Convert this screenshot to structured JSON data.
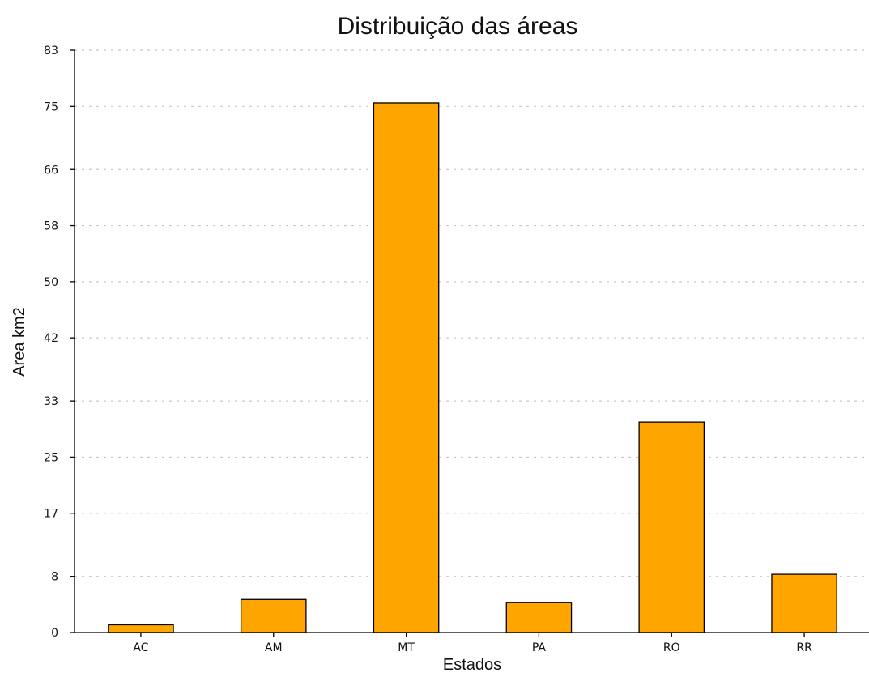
{
  "chart_data": {
    "type": "bar",
    "title": "Distribuição das áreas",
    "xlabel": "Estados",
    "ylabel": "Area km2",
    "categories": [
      "AC",
      "AM",
      "MT",
      "PA",
      "RO",
      "RR"
    ],
    "values": [
      1.1,
      4.7,
      75.5,
      4.3,
      30.0,
      8.3
    ],
    "yticks": [
      0,
      8,
      17,
      25,
      33,
      42,
      50,
      58,
      66,
      75,
      83
    ],
    "ylim": [
      0,
      83
    ],
    "grid": true,
    "bar_color": "#FFA500"
  }
}
